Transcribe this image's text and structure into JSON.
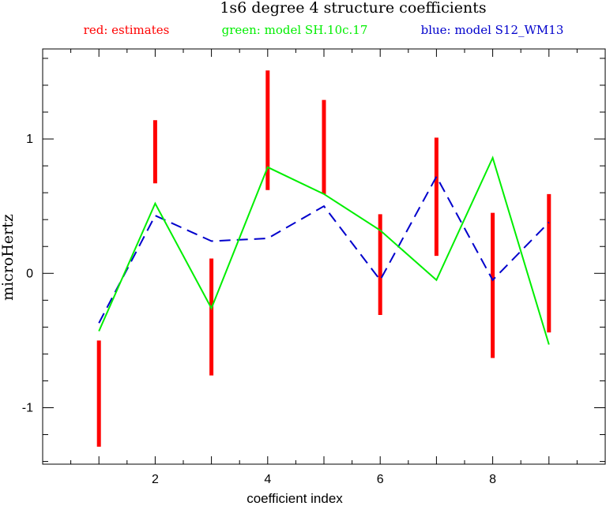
{
  "chart_data": {
    "type": "line",
    "title": "1s6 degree 4 structure coefficients",
    "legend": [
      {
        "text": "red: estimates",
        "color": "#ff0000"
      },
      {
        "text": "green: model SH.10c.17",
        "color": "#00ee00"
      },
      {
        "text": "blue: model S12_WM13",
        "color": "#0000cc"
      }
    ],
    "xlabel": "coefficient index",
    "ylabel": "microHertz",
    "xlim": [
      0,
      10
    ],
    "ylim": [
      -1.42,
      1.67
    ],
    "xticks": [
      2,
      4,
      6,
      8
    ],
    "yticks": [
      -1,
      0,
      1
    ],
    "x": [
      1,
      2,
      3,
      4,
      5,
      6,
      7,
      8,
      9
    ],
    "estimates": {
      "name": "red: estimates",
      "color": "#ff0000",
      "ranges": [
        [
          -1.29,
          -0.5
        ],
        [
          0.67,
          1.14
        ],
        [
          -0.76,
          0.11
        ],
        [
          0.62,
          1.51
        ],
        [
          0.59,
          1.29
        ],
        [
          -0.31,
          0.44
        ],
        [
          0.13,
          1.01
        ],
        [
          -0.63,
          0.45
        ],
        [
          -0.44,
          0.59
        ]
      ]
    },
    "series": [
      {
        "name": "green: model SH.10c.17",
        "color": "#00ee00",
        "style": "solid",
        "values": [
          -0.43,
          0.52,
          -0.26,
          0.79,
          0.59,
          0.32,
          -0.05,
          0.86,
          -0.53
        ]
      },
      {
        "name": "blue: model S12_WM13",
        "color": "#0000cc",
        "style": "dashed",
        "values": [
          -0.37,
          0.43,
          0.24,
          0.26,
          0.5,
          -0.05,
          0.72,
          -0.05,
          0.38
        ]
      }
    ]
  }
}
